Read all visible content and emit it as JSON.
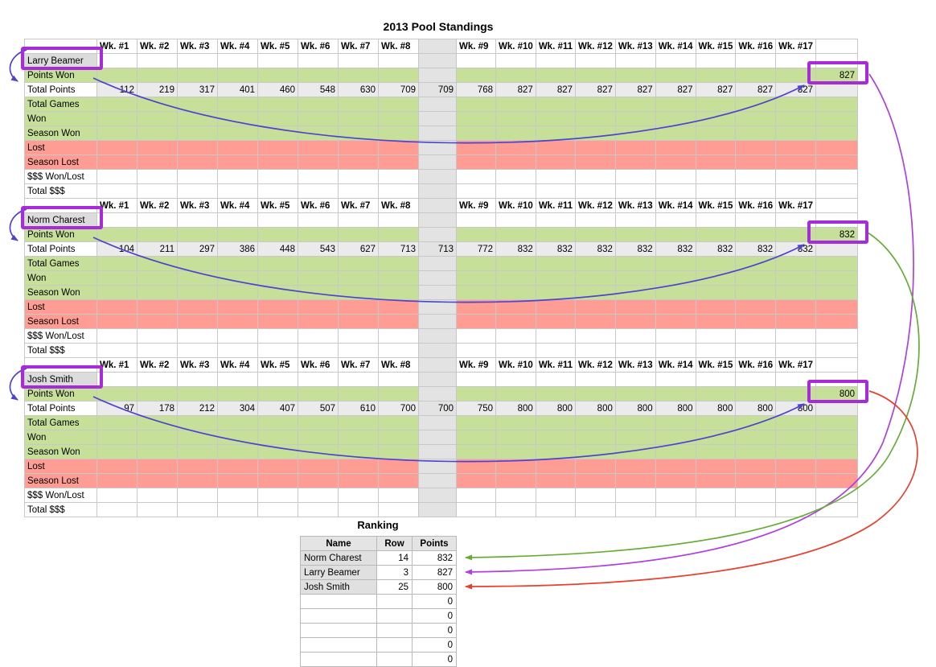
{
  "title": "2013 Pool Standings",
  "week_headers_left": [
    "Wk. #1",
    "Wk. #2",
    "Wk. #3",
    "Wk. #4",
    "Wk. #5",
    "Wk. #6",
    "Wk. #7",
    "Wk. #8"
  ],
  "week_headers_right": [
    "Wk. #9",
    "Wk. #10",
    "Wk. #11",
    "Wk. #12",
    "Wk. #13",
    "Wk. #14",
    "Wk. #15",
    "Wk. #16",
    "Wk. #17"
  ],
  "row_labels": [
    "Points Won",
    "Total Points",
    "Total Games",
    "Won",
    "Season Won",
    "Lost",
    "Season Lost",
    "$$$ Won/Lost",
    "Total $$$"
  ],
  "players": [
    {
      "name": "Larry Beamer",
      "points_won_final": "827",
      "total_points_left": [
        "112",
        "219",
        "317",
        "401",
        "460",
        "548",
        "630",
        "709"
      ],
      "total_points_gap": "709",
      "total_points_right": [
        "768",
        "827",
        "827",
        "827",
        "827",
        "827",
        "827",
        "827",
        "827"
      ]
    },
    {
      "name": "Norm Charest",
      "points_won_final": "832",
      "total_points_left": [
        "104",
        "211",
        "297",
        "386",
        "448",
        "543",
        "627",
        "713"
      ],
      "total_points_gap": "713",
      "total_points_right": [
        "772",
        "832",
        "832",
        "832",
        "832",
        "832",
        "832",
        "832",
        "832"
      ]
    },
    {
      "name": "Josh Smith",
      "points_won_final": "800",
      "total_points_left": [
        "97",
        "178",
        "212",
        "304",
        "407",
        "507",
        "610",
        "700"
      ],
      "total_points_gap": "700",
      "total_points_right": [
        "750",
        "800",
        "800",
        "800",
        "800",
        "800",
        "800",
        "800",
        "800"
      ]
    }
  ],
  "ranking": {
    "title": "Ranking",
    "headers": [
      "Name",
      "Row",
      "Points"
    ],
    "rows": [
      {
        "name": "Norm Charest",
        "row": "14",
        "points": "832"
      },
      {
        "name": "Larry Beamer",
        "row": "3",
        "points": "827"
      },
      {
        "name": "Josh Smith",
        "row": "25",
        "points": "800"
      },
      {
        "name": "",
        "row": "",
        "points": "0"
      },
      {
        "name": "",
        "row": "",
        "points": "0"
      },
      {
        "name": "",
        "row": "",
        "points": "0"
      },
      {
        "name": "",
        "row": "",
        "points": "0"
      },
      {
        "name": "",
        "row": "",
        "points": "0"
      }
    ]
  },
  "colors": {
    "row_green": "#c6e09a",
    "row_red": "#ff9d94",
    "gap_gray": "#e3e3e3",
    "totals_gray": "#ebebeb",
    "name_gray": "#dcdcdc",
    "highlight_box_purple": "#a82bd9",
    "arrow_blue": "#4d43cc",
    "curve_purple": "#b03ee0",
    "curve_green": "#68ac38",
    "curve_red": "#e8402e"
  }
}
